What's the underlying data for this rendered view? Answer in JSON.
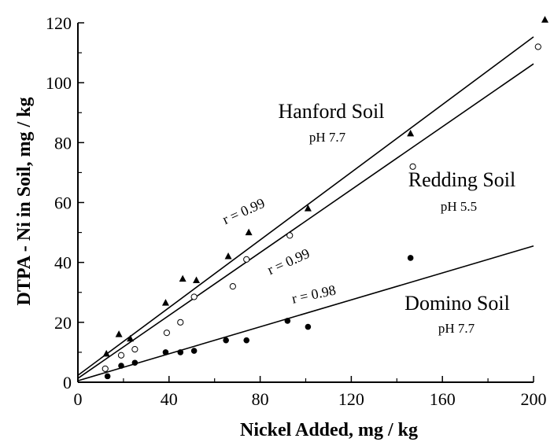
{
  "chart_data": {
    "type": "scatter",
    "xlabel": "Nickel Added, mg / kg",
    "ylabel": "DTPA - Ni in Soil, mg / kg",
    "xlim": [
      0,
      200
    ],
    "ylim": [
      0,
      120
    ],
    "x_ticks": [
      "0",
      "40",
      "80",
      "120",
      "160",
      "200"
    ],
    "y_ticks": [
      "0",
      "20",
      "40",
      "60",
      "80",
      "100",
      "120"
    ],
    "grid": false,
    "legend": "none",
    "series": [
      {
        "name": "Hanford Soil",
        "ph": "pH 7.7",
        "r": "r = 0.99",
        "marker": "triangle",
        "x": [
          12.5,
          18,
          23,
          38.5,
          46,
          52,
          66,
          75,
          101,
          146,
          205
        ],
        "y": [
          9.5,
          16,
          14.5,
          26.5,
          34.5,
          34,
          42,
          50,
          58,
          83,
          121
        ],
        "fit": {
          "slope": 0.565,
          "intercept": 2.3
        }
      },
      {
        "name": "Redding Soil",
        "ph": "pH 5.5",
        "r": "r = 0.99",
        "marker": "open-circle",
        "x": [
          12,
          19,
          25,
          39,
          45,
          51,
          68,
          74,
          93,
          147,
          202
        ],
        "y": [
          4.5,
          9,
          11,
          16.5,
          20,
          28.5,
          32,
          41,
          49,
          72,
          112
        ],
        "fit": {
          "slope": 0.525,
          "intercept": 1.3
        }
      },
      {
        "name": "Domino Soil",
        "ph": "pH 7.7",
        "r": "r = 0.98",
        "marker": "filled-circle",
        "x": [
          13,
          19,
          25,
          38.5,
          45,
          51,
          65,
          74,
          92,
          101,
          146
        ],
        "y": [
          2,
          5.5,
          6.5,
          10,
          10,
          10.5,
          14,
          14,
          20.5,
          18.5,
          41.5
        ],
        "fit": {
          "slope": 0.225,
          "intercept": 0.5
        }
      }
    ]
  }
}
